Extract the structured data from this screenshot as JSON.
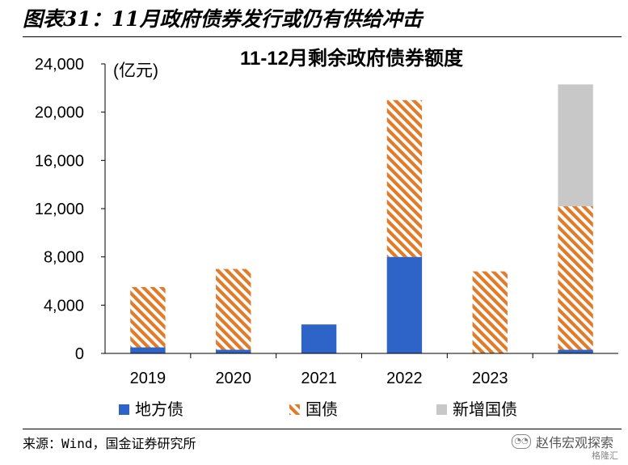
{
  "header": {
    "figure_title": "图表31：11月政府债券发行或仍有供给冲击"
  },
  "footer": {
    "source": "来源：Wind，国金证券研究所",
    "watermark": "赵伟宏观探索",
    "logo": "格隆汇"
  },
  "colors": {
    "local": "#2E64C8",
    "national": "#E07B2A",
    "special": "#C8C8C8"
  },
  "chart_data": {
    "type": "bar",
    "stacked": true,
    "title": "11-12月剩余政府债券额度",
    "unit_label": "(亿元)",
    "categories": [
      "2019",
      "2020",
      "2021",
      "2022",
      "2023",
      ""
    ],
    "series": [
      {
        "name": "地方债",
        "values": [
          500,
          300,
          2400,
          8000,
          0,
          300
        ],
        "pattern": "solid"
      },
      {
        "name": "国债",
        "values": [
          5000,
          6700,
          0,
          13000,
          6800,
          11900
        ],
        "pattern": "hatched"
      },
      {
        "name": "新增国债",
        "values": [
          0,
          0,
          0,
          0,
          0,
          10100
        ],
        "pattern": "solid"
      }
    ],
    "ylim": [
      0,
      24000
    ],
    "yticks": [
      "0",
      "4,000",
      "8,000",
      "12,000",
      "16,000",
      "20,000",
      "24,000"
    ],
    "ytick_values": [
      0,
      4000,
      8000,
      12000,
      16000,
      20000,
      24000
    ],
    "grid": false,
    "legend_position": "bottom"
  }
}
